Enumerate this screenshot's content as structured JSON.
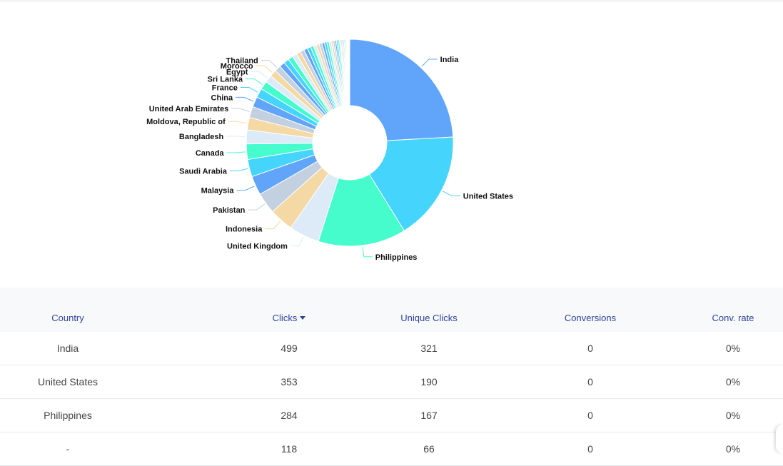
{
  "chart_data": {
    "type": "pie",
    "donut": true,
    "slices": [
      {
        "label": "India",
        "value": 499,
        "color": "#60a5fa"
      },
      {
        "label": "United States",
        "value": 353,
        "color": "#45d4fb"
      },
      {
        "label": "Philippines",
        "value": 284,
        "color": "#46fccc"
      },
      {
        "label": "United Kingdom",
        "value": 98,
        "color": "#dcebf7"
      },
      {
        "label": "Indonesia",
        "value": 78,
        "color": "#f4d9a5"
      },
      {
        "label": "Pakistan",
        "value": 68,
        "color": "#c2d0e0"
      },
      {
        "label": "Malaysia",
        "value": 62,
        "color": "#60a5fa"
      },
      {
        "label": "Saudi Arabia",
        "value": 56,
        "color": "#45d4fb"
      },
      {
        "label": "Canada",
        "value": 50,
        "color": "#46fccc"
      },
      {
        "label": "Bangladesh",
        "value": 45,
        "color": "#dcebf7"
      },
      {
        "label": "Moldova, Republic of",
        "value": 40,
        "color": "#f4d9a5"
      },
      {
        "label": "United Arab Emirates",
        "value": 36,
        "color": "#c2d0e0"
      },
      {
        "label": "China",
        "value": 33,
        "color": "#60a5fa"
      },
      {
        "label": "France",
        "value": 30,
        "color": "#45d4fb"
      },
      {
        "label": "Sri Lanka",
        "value": 27,
        "color": "#46fccc"
      },
      {
        "label": "Egypt",
        "value": 24,
        "color": "#dcebf7"
      },
      {
        "label": "Morocco",
        "value": 22,
        "color": "#f4d9a5"
      },
      {
        "label": "Thailand",
        "value": 20,
        "color": "#c2d0e0"
      }
    ],
    "other_small_slices": [
      18,
      17,
      16,
      15,
      14,
      13,
      12,
      11,
      10,
      10,
      9,
      9,
      8,
      8,
      7,
      7,
      6,
      6,
      5,
      5,
      5,
      4,
      4,
      4,
      3,
      3,
      3,
      2,
      2,
      2,
      2,
      1,
      1,
      1,
      1
    ],
    "palette": [
      "#60a5fa",
      "#45d4fb",
      "#46fccc",
      "#dcebf7",
      "#f4d9a5",
      "#c2d0e0"
    ]
  },
  "table": {
    "headers": [
      "Country",
      "Clicks",
      "Unique Clicks",
      "Conversions",
      "Conv. rate"
    ],
    "sorted_column": "Clicks",
    "rows": [
      [
        "India",
        "499",
        "321",
        "0",
        "0%"
      ],
      [
        "United States",
        "353",
        "190",
        "0",
        "0%"
      ],
      [
        "Philippines",
        "284",
        "167",
        "0",
        "0%"
      ],
      [
        "-",
        "118",
        "66",
        "0",
        "0%"
      ]
    ]
  }
}
